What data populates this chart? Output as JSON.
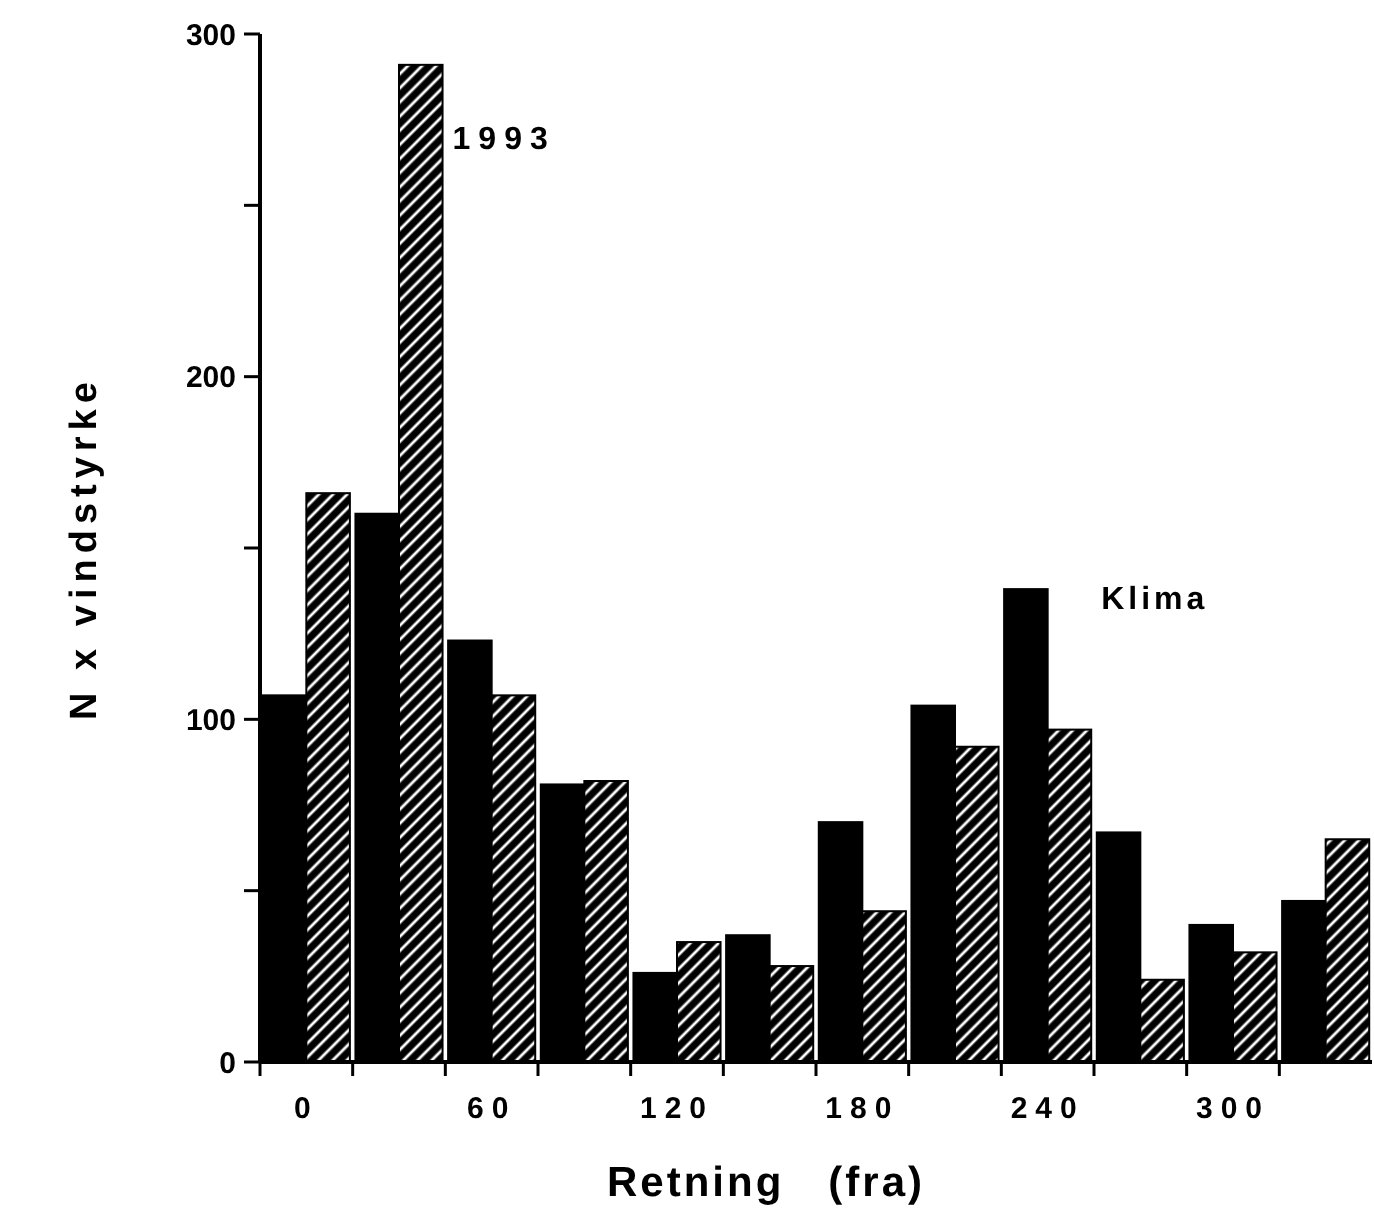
{
  "chart_data": {
    "type": "bar",
    "xlabel": "Retning   (fra)",
    "ylabel": "N x vindstyrke",
    "categories": [
      "0",
      null,
      "60",
      null,
      "120",
      null,
      "180",
      null,
      "240",
      null,
      "300",
      null
    ],
    "series": [
      {
        "name": "Klima",
        "color": "#000000",
        "values": [
          107,
          160,
          123,
          81,
          26,
          37,
          70,
          104,
          138,
          67,
          40,
          47
        ]
      },
      {
        "name": "1993",
        "color": "#000000",
        "values": [
          166,
          291,
          107,
          82,
          35,
          28,
          44,
          92,
          97,
          24,
          32,
          65
        ]
      }
    ],
    "ylim": [
      0,
      300
    ],
    "yticks": [
      0,
      {
        "value": 50,
        "label": null
      },
      100,
      {
        "value": 150,
        "label": null
      },
      200,
      {
        "value": 250,
        "label": null
      },
      300
    ],
    "grid": false
  }
}
